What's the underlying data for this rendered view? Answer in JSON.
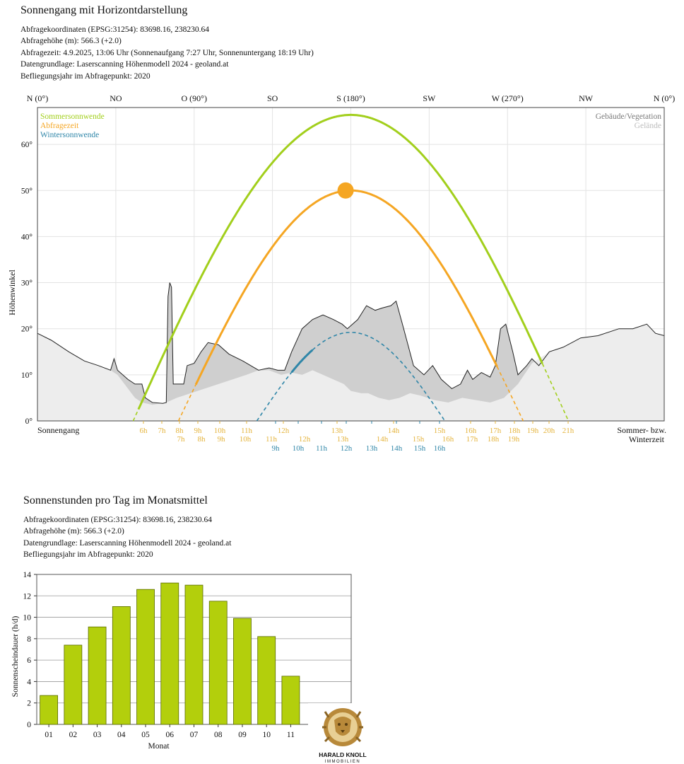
{
  "sun_chart": {
    "title": "Sonnengang mit Horizontdarstellung",
    "meta": [
      "Abfragekoordinaten (EPSG:31254): 83698.16, 238230.64",
      "Abfragehöhe (m): 566.3 (+2.0)",
      "Abfragezeit: 4.9.2025, 13:06 Uhr (Sonnenaufgang 7:27 Uhr,  Sonnenuntergang 18:19 Uhr)",
      "Datengrundlage: Laserscanning Höhenmodell 2024 - geoland.at",
      "Befliegungsjahr im Abfragepunkt: 2020"
    ],
    "ylabel": "Höhenwinkel",
    "left_label": "Sonnengang",
    "right_label_1": "Sommer- bzw.",
    "right_label_2": "Winterzeit",
    "legend_left": [
      "Sommersonnwende",
      "Abfragezeit",
      "Wintersonnwende"
    ],
    "legend_right": [
      "Gebäude/Vegetation",
      "Gelände"
    ],
    "colors": {
      "summer": "#a2cf1c",
      "query": "#f5a623",
      "winter": "#2f86a8",
      "buildings": "#cfcfcf",
      "terrain": "#ededed"
    }
  },
  "chart_data": [
    {
      "type": "line",
      "xlabel": "",
      "ylabel": "Höhenwinkel",
      "xlim": [
        0,
        360
      ],
      "ylim": [
        0,
        68
      ],
      "grid": true,
      "direction_ticks": [
        {
          "az": 0,
          "label": "N (0°)"
        },
        {
          "az": 45,
          "label": "NO"
        },
        {
          "az": 90,
          "label": "O (90°)"
        },
        {
          "az": 135,
          "label": "SO"
        },
        {
          "az": 180,
          "label": "S (180°)"
        },
        {
          "az": 225,
          "label": "SW"
        },
        {
          "az": 270,
          "label": "W (270°)"
        },
        {
          "az": 315,
          "label": "NW"
        },
        {
          "az": 360,
          "label": "N (0°)"
        }
      ],
      "y_ticks": [
        {
          "v": 0,
          "label": "0°"
        },
        {
          "v": 10,
          "label": "10°"
        },
        {
          "v": 20,
          "label": "20°"
        },
        {
          "v": 30,
          "label": "30°"
        },
        {
          "v": 40,
          "label": "40°"
        },
        {
          "v": 50,
          "label": "50°"
        },
        {
          "v": 60,
          "label": "60°"
        }
      ],
      "series": [
        {
          "name": "Sommersonnwende",
          "peak_azimuth": 180,
          "peak_altitude": 66.4,
          "azimuth_range": [
            55,
            305
          ],
          "rise_visible_az": 58,
          "set_visible_az": 290
        },
        {
          "name": "Abfragezeit",
          "peak_azimuth": 180,
          "peak_altitude": 50,
          "azimuth_range": [
            81,
            279
          ],
          "rise_visible_az": 91,
          "set_visible_az": 264
        },
        {
          "name": "Wintersonnwende",
          "peak_azimuth": 180,
          "peak_altitude": 19.2,
          "azimuth_range": [
            126,
            234
          ],
          "rise_visible_az": 146,
          "set_visible_az": 158
        }
      ],
      "current_sun": {
        "azimuth": 177,
        "altitude": 50
      },
      "horizon_buildings": [
        [
          0,
          19
        ],
        [
          8,
          17.5
        ],
        [
          18,
          15
        ],
        [
          27,
          13
        ],
        [
          35,
          12
        ],
        [
          42,
          11
        ],
        [
          44,
          13.5
        ],
        [
          46,
          11
        ],
        [
          52,
          9
        ],
        [
          56,
          8
        ],
        [
          60,
          8
        ],
        [
          62,
          5
        ],
        [
          66,
          4
        ],
        [
          72,
          3.8
        ],
        [
          74,
          4
        ],
        [
          75,
          27
        ],
        [
          76,
          30
        ],
        [
          77,
          29
        ],
        [
          78,
          8
        ],
        [
          84,
          8
        ],
        [
          86,
          12
        ],
        [
          90,
          12.5
        ],
        [
          94,
          15
        ],
        [
          98,
          17
        ],
        [
          104,
          16.5
        ],
        [
          110,
          14.5
        ],
        [
          118,
          13
        ],
        [
          127,
          11
        ],
        [
          133,
          11.5
        ],
        [
          138,
          11
        ],
        [
          142,
          11
        ],
        [
          146,
          15
        ],
        [
          152,
          20
        ],
        [
          158,
          22
        ],
        [
          164,
          23
        ],
        [
          170,
          22
        ],
        [
          175,
          21
        ],
        [
          178,
          20
        ],
        [
          184,
          22
        ],
        [
          189,
          25
        ],
        [
          194,
          24
        ],
        [
          198,
          24.5
        ],
        [
          203,
          25
        ],
        [
          206,
          26
        ],
        [
          210,
          20.5
        ],
        [
          216,
          12
        ],
        [
          222,
          10
        ],
        [
          227,
          12
        ],
        [
          232,
          9
        ],
        [
          238,
          7
        ],
        [
          243,
          8
        ],
        [
          247,
          11
        ],
        [
          250,
          9
        ],
        [
          255,
          10.5
        ],
        [
          260,
          9.5
        ],
        [
          263,
          12
        ],
        [
          266,
          20
        ],
        [
          269,
          21
        ],
        [
          273,
          15
        ],
        [
          276,
          10
        ],
        [
          281,
          12
        ],
        [
          284,
          13.5
        ],
        [
          288,
          12
        ],
        [
          294,
          15
        ],
        [
          302,
          16
        ],
        [
          312,
          18
        ],
        [
          322,
          18.5
        ],
        [
          334,
          20
        ],
        [
          342,
          20
        ],
        [
          350,
          21
        ],
        [
          355,
          19
        ],
        [
          360,
          18.5
        ]
      ],
      "horizon_terrain": [
        [
          0,
          19
        ],
        [
          8,
          17.5
        ],
        [
          18,
          15
        ],
        [
          27,
          13
        ],
        [
          35,
          12
        ],
        [
          42,
          11
        ],
        [
          46,
          10
        ],
        [
          52,
          7
        ],
        [
          56,
          5
        ],
        [
          60,
          4
        ],
        [
          66,
          3.5
        ],
        [
          74,
          4
        ],
        [
          80,
          5
        ],
        [
          88,
          6
        ],
        [
          96,
          7
        ],
        [
          104,
          8
        ],
        [
          112,
          9
        ],
        [
          120,
          10
        ],
        [
          127,
          11
        ],
        [
          133,
          11
        ],
        [
          140,
          10
        ],
        [
          146,
          10.5
        ],
        [
          152,
          10
        ],
        [
          158,
          11
        ],
        [
          164,
          10
        ],
        [
          170,
          9
        ],
        [
          176,
          8
        ],
        [
          180,
          6.5
        ],
        [
          186,
          6
        ],
        [
          190,
          6
        ],
        [
          196,
          5
        ],
        [
          202,
          4.5
        ],
        [
          208,
          5
        ],
        [
          214,
          6
        ],
        [
          220,
          5.5
        ],
        [
          228,
          4.5
        ],
        [
          236,
          4
        ],
        [
          244,
          5
        ],
        [
          252,
          4.5
        ],
        [
          260,
          4
        ],
        [
          268,
          5
        ],
        [
          276,
          8
        ],
        [
          284,
          12.5
        ],
        [
          294,
          15
        ],
        [
          302,
          16
        ],
        [
          312,
          18
        ],
        [
          322,
          18.5
        ],
        [
          334,
          20
        ],
        [
          342,
          20
        ],
        [
          350,
          21
        ],
        [
          355,
          19
        ],
        [
          360,
          18.5
        ]
      ],
      "hour_labels": {
        "summer_row": [
          "6h",
          "7h",
          "8h",
          "9h",
          "10h",
          "11h",
          "12h",
          "13h",
          "14h",
          "15h",
          "16h",
          "17h",
          "18h",
          "19h",
          "20h",
          "21h"
        ],
        "query_row": [
          "7h",
          "8h",
          "9h",
          "10h",
          "11h",
          "12h",
          "13h",
          "14h",
          "15h",
          "16h",
          "17h",
          "18h",
          "19h"
        ],
        "winter_row": [
          "9h",
          "10h",
          "11h",
          "12h",
          "13h",
          "14h",
          "15h",
          "16h"
        ]
      }
    },
    {
      "type": "bar",
      "title": "Sonnenstunden pro Tag im Monatsmittel",
      "xlabel": "Monat",
      "ylabel": "Sonnenscheindauer (h/d)",
      "ylim": [
        0,
        14
      ],
      "categories": [
        "01",
        "02",
        "03",
        "04",
        "05",
        "06",
        "07",
        "08",
        "09",
        "10",
        "11"
      ],
      "values": [
        2.7,
        7.4,
        9.1,
        11.0,
        12.6,
        13.2,
        13.0,
        11.5,
        9.9,
        8.2,
        4.5
      ]
    }
  ],
  "bar_chart": {
    "title": "Sonnenstunden pro Tag im Monatsmittel",
    "meta": [
      "Abfragekoordinaten (EPSG:31254): 83698.16, 238230.64",
      "Abfragehöhe (m): 566.3 (+2.0)",
      "Datengrundlage: Laserscanning Höhenmodell 2024 - geoland.at",
      "Befliegungsjahr im Abfragepunkt: 2020"
    ],
    "bar_color": "#b3cf0c",
    "y_ticks": [
      "0",
      "2",
      "4",
      "6",
      "8",
      "10",
      "12",
      "14"
    ]
  },
  "logo": {
    "line1": "HARALD KNOLL",
    "line2": "IMMOBILIEN"
  }
}
